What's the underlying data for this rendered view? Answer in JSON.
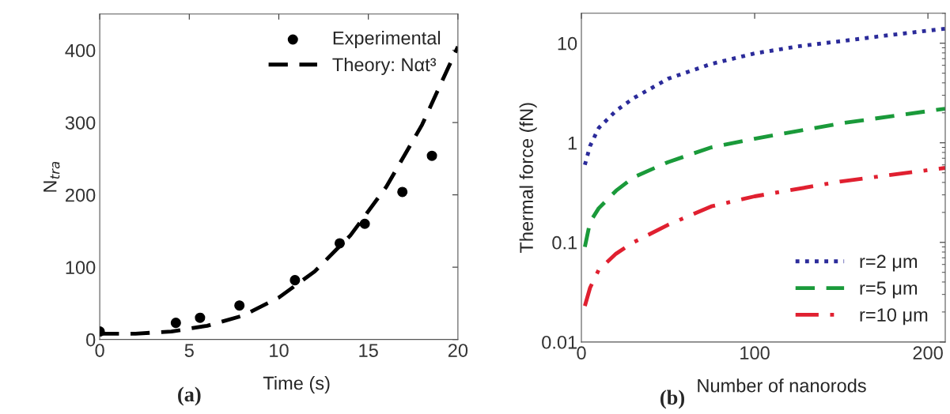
{
  "chart_data": [
    {
      "type": "scatter",
      "xlabel": "Time (s)",
      "ylabel": "N$_{tra}$",
      "xlim": [
        0,
        20
      ],
      "ylim": [
        0,
        450
      ],
      "xticks": [
        0,
        5,
        10,
        15,
        20
      ],
      "yticks": [
        0,
        100,
        200,
        300,
        400
      ],
      "legend": "top right",
      "grid": false,
      "annotations": [
        "(a)"
      ],
      "series": [
        {
          "name": "Experimental",
          "type": "scatter",
          "color": "#000000",
          "marker": "circle",
          "x": [
            0,
            4.25,
            5.6,
            7.8,
            10.9,
            13.4,
            14.8,
            16.9,
            18.55
          ],
          "values": [
            11,
            23,
            30,
            47,
            82,
            133,
            160,
            204,
            254
          ]
        },
        {
          "name": "Theory: Nαt³",
          "type": "line",
          "color": "#000000",
          "line_style": "dashed",
          "marker": "none",
          "x": [
            0,
            2,
            4,
            6,
            8,
            10,
            12,
            14,
            16,
            18,
            20
          ],
          "values": [
            8,
            8,
            11,
            19,
            33,
            58,
            94,
            144,
            211,
            297,
            405
          ]
        }
      ]
    },
    {
      "type": "line",
      "xlabel": "Number of nanorods",
      "ylabel": "Thermal force (fN)",
      "log": "y",
      "xlim": [
        0,
        210
      ],
      "ylim": [
        0.01,
        20
      ],
      "xticks": [
        0,
        100,
        200
      ],
      "yticks": [
        0.01,
        0.1,
        1,
        10
      ],
      "legend": "bottom right",
      "grid": false,
      "annotations": [
        "(b)"
      ],
      "series": [
        {
          "name": "r=2 μm",
          "color": "#2b2b9a",
          "line_style": "dotted",
          "x": [
            2,
            5,
            10,
            20,
            30,
            50,
            75,
            100,
            125,
            150,
            175,
            210
          ],
          "values": [
            0.6,
            0.93,
            1.41,
            2.1,
            2.8,
            4.4,
            6.2,
            7.9,
            9.3,
            10.5,
            11.9,
            14
          ]
        },
        {
          "name": "r=5 μm",
          "color": "#1a9a3a",
          "line_style": "dashed",
          "x": [
            2,
            5,
            10,
            20,
            30,
            50,
            75,
            100,
            150,
            210
          ],
          "values": [
            0.09,
            0.16,
            0.22,
            0.33,
            0.45,
            0.64,
            0.9,
            1.1,
            1.57,
            2.2
          ]
        },
        {
          "name": "r=10 μm",
          "color": "#e02030",
          "line_style": "dashdot",
          "x": [
            2,
            5,
            10,
            20,
            30,
            50,
            75,
            100,
            150,
            210
          ],
          "values": [
            0.023,
            0.035,
            0.053,
            0.077,
            0.1,
            0.15,
            0.23,
            0.29,
            0.41,
            0.56
          ]
        }
      ]
    }
  ]
}
